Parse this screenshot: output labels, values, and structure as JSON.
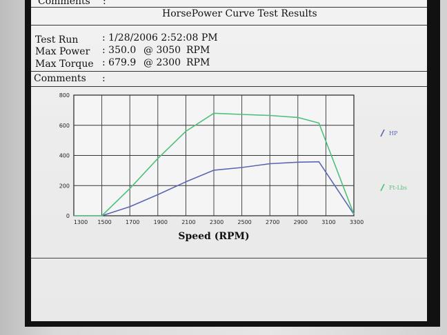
{
  "report": {
    "comments_top_label": "Comments",
    "comments_top_colon": ":",
    "title": "HorsePower Curve Test Results",
    "rows": [
      {
        "label": "Test Run",
        "value": ": 1/28/2006 2:52:08 PM"
      },
      {
        "label": "Max Power",
        "value": ": 350.0",
        "at": "@ 3050",
        "unit": "RPM"
      },
      {
        "label": "Max Torque",
        "value": ": 679.9",
        "at": "@ 2300",
        "unit": "RPM"
      }
    ],
    "comments_label": "Comments",
    "comments_colon": ":"
  },
  "chart_data": {
    "type": "line",
    "x": [
      1300,
      1500,
      1700,
      1900,
      2100,
      2300,
      2500,
      2700,
      2900,
      3100,
      3300
    ],
    "x_tick_labels": [
      "1300",
      "1500",
      "1700",
      "1900",
      "2100",
      "2300",
      "2500",
      "2700",
      "2900",
      "3100",
      "3300"
    ],
    "y_tick_labels": [
      "0",
      "200",
      "400",
      "600",
      "800"
    ],
    "xlabel": "Speed (RPM)",
    "ylabel": "",
    "xlim": [
      1300,
      3300
    ],
    "ylim": [
      0,
      800
    ],
    "grid": true,
    "legend_position": "right",
    "series": [
      {
        "name": "HP",
        "color": "#5a66b0",
        "points": [
          [
            1500,
            0
          ],
          [
            1700,
            60
          ],
          [
            1900,
            140
          ],
          [
            2100,
            225
          ],
          [
            2300,
            302
          ],
          [
            2500,
            320
          ],
          [
            2700,
            345
          ],
          [
            2900,
            355
          ],
          [
            3050,
            358
          ],
          [
            3300,
            10
          ]
        ]
      },
      {
        "name": "Ft-Lbs",
        "color": "#4cc07a",
        "points": [
          [
            1300,
            0
          ],
          [
            1500,
            0
          ],
          [
            1700,
            180
          ],
          [
            1900,
            380
          ],
          [
            2100,
            560
          ],
          [
            2300,
            680
          ],
          [
            2500,
            672
          ],
          [
            2700,
            665
          ],
          [
            2900,
            652
          ],
          [
            3050,
            615
          ],
          [
            3300,
            10
          ]
        ]
      }
    ]
  }
}
